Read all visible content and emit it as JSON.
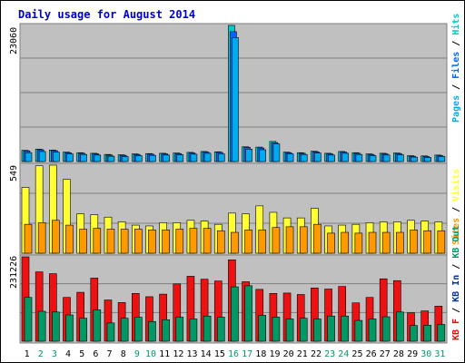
{
  "title": "Daily usage for August 2014",
  "colors": {
    "frame": "#ffffff",
    "plot_bg": "#c0c0c0",
    "title": "#0000cc",
    "hits": "#00cccc",
    "files": "#0066ff",
    "pages": "#00aaee",
    "visits": "#ffff33",
    "sites": "#ff9900",
    "kbout": "#009966",
    "kbin": "#003399",
    "kbf": "#ff0000",
    "kbin_bar": "#ee1111"
  },
  "chart_data": {
    "type": "bar",
    "categories": [
      "1",
      "2",
      "3",
      "4",
      "5",
      "6",
      "7",
      "8",
      "9",
      "10",
      "11",
      "12",
      "13",
      "14",
      "15",
      "16",
      "17",
      "18",
      "19",
      "20",
      "21",
      "22",
      "23",
      "24",
      "25",
      "26",
      "27",
      "28",
      "29",
      "30",
      "31"
    ],
    "weekend_days": [
      "2",
      "3",
      "9",
      "10",
      "16",
      "17",
      "23",
      "24",
      "30",
      "31"
    ],
    "panels": [
      {
        "id": "hits",
        "max_label": "23060",
        "ylim": [
          0,
          23060
        ],
        "legend": [
          "Hits",
          "Files",
          "Pages"
        ],
        "series": [
          {
            "name": "Hits",
            "values": [
              1900,
              2100,
              1950,
              1600,
              1500,
              1400,
              1200,
              1150,
              1300,
              1350,
              1400,
              1450,
              1550,
              1700,
              1650,
              23060,
              2500,
              2450,
              3400,
              1600,
              1500,
              1750,
              1400,
              1700,
              1500,
              1300,
              1400,
              1450,
              1000,
              950,
              1100
            ]
          },
          {
            "name": "Files",
            "values": [
              1800,
              2000,
              1850,
              1500,
              1400,
              1300,
              1100,
              1050,
              1200,
              1250,
              1300,
              1350,
              1450,
              1600,
              1550,
              22000,
              2400,
              2300,
              3200,
              1500,
              1400,
              1650,
              1300,
              1600,
              1400,
              1200,
              1300,
              1350,
              900,
              850,
              1000
            ]
          },
          {
            "name": "Pages",
            "values": [
              1500,
              1700,
              1600,
              1300,
              1200,
              1100,
              900,
              850,
              1000,
              1050,
              1100,
              1150,
              1250,
              1400,
              1300,
              21000,
              2100,
              2000,
              3000,
              1300,
              1200,
              1450,
              1100,
              1400,
              1200,
              1000,
              1100,
              1150,
              750,
              700,
              850
            ]
          }
        ]
      },
      {
        "id": "visits",
        "max_label": "549",
        "ylim": [
          0,
          549
        ],
        "legend": [
          "Visits",
          "Sites"
        ],
        "series": [
          {
            "name": "Visits",
            "values": [
              410,
              545,
              549,
              460,
              245,
              240,
              225,
              195,
              175,
              170,
              190,
              190,
              205,
              200,
              180,
              250,
              245,
              295,
              255,
              220,
              220,
              280,
              170,
              175,
              180,
              190,
              195,
              195,
              205,
              200,
              195
            ]
          },
          {
            "name": "Sites",
            "values": [
              180,
              190,
              205,
              175,
              150,
              155,
              150,
              150,
              150,
              145,
              145,
              150,
              155,
              155,
              140,
              130,
              145,
              145,
              160,
              165,
              165,
              180,
              125,
              130,
              125,
              130,
              130,
              130,
              145,
              140,
              140
            ]
          }
        ]
      },
      {
        "id": "kb",
        "max_label": "231226",
        "ylim": [
          0,
          231226
        ],
        "legend": [
          "KB F",
          "KB In",
          "KB Out"
        ],
        "series": [
          {
            "name": "KB F",
            "values": [
              231226,
              190000,
              185000,
              120000,
              134000,
              173000,
              113000,
              106000,
              131000,
              122000,
              129000,
              157000,
              178000,
              170000,
              165000,
              223000,
              163000,
              142000,
              131000,
              132000,
              128000,
              146000,
              143000,
              150000,
              105000,
              120000,
              171000,
              166000,
              78000,
              83000,
              96000
            ]
          },
          {
            "name": "KB In",
            "values": [
              120000,
              82000,
              80000,
              72000,
              63000,
              86000,
              50000,
              63000,
              66000,
              54000,
              59000,
              66000,
              61000,
              69000,
              66000,
              149000,
              152000,
              71000,
              66000,
              61000,
              63000,
              61000,
              69000,
              69000,
              57000,
              61000,
              67000,
              80000,
              43000,
              44000,
              46000
            ]
          }
        ]
      }
    ]
  }
}
